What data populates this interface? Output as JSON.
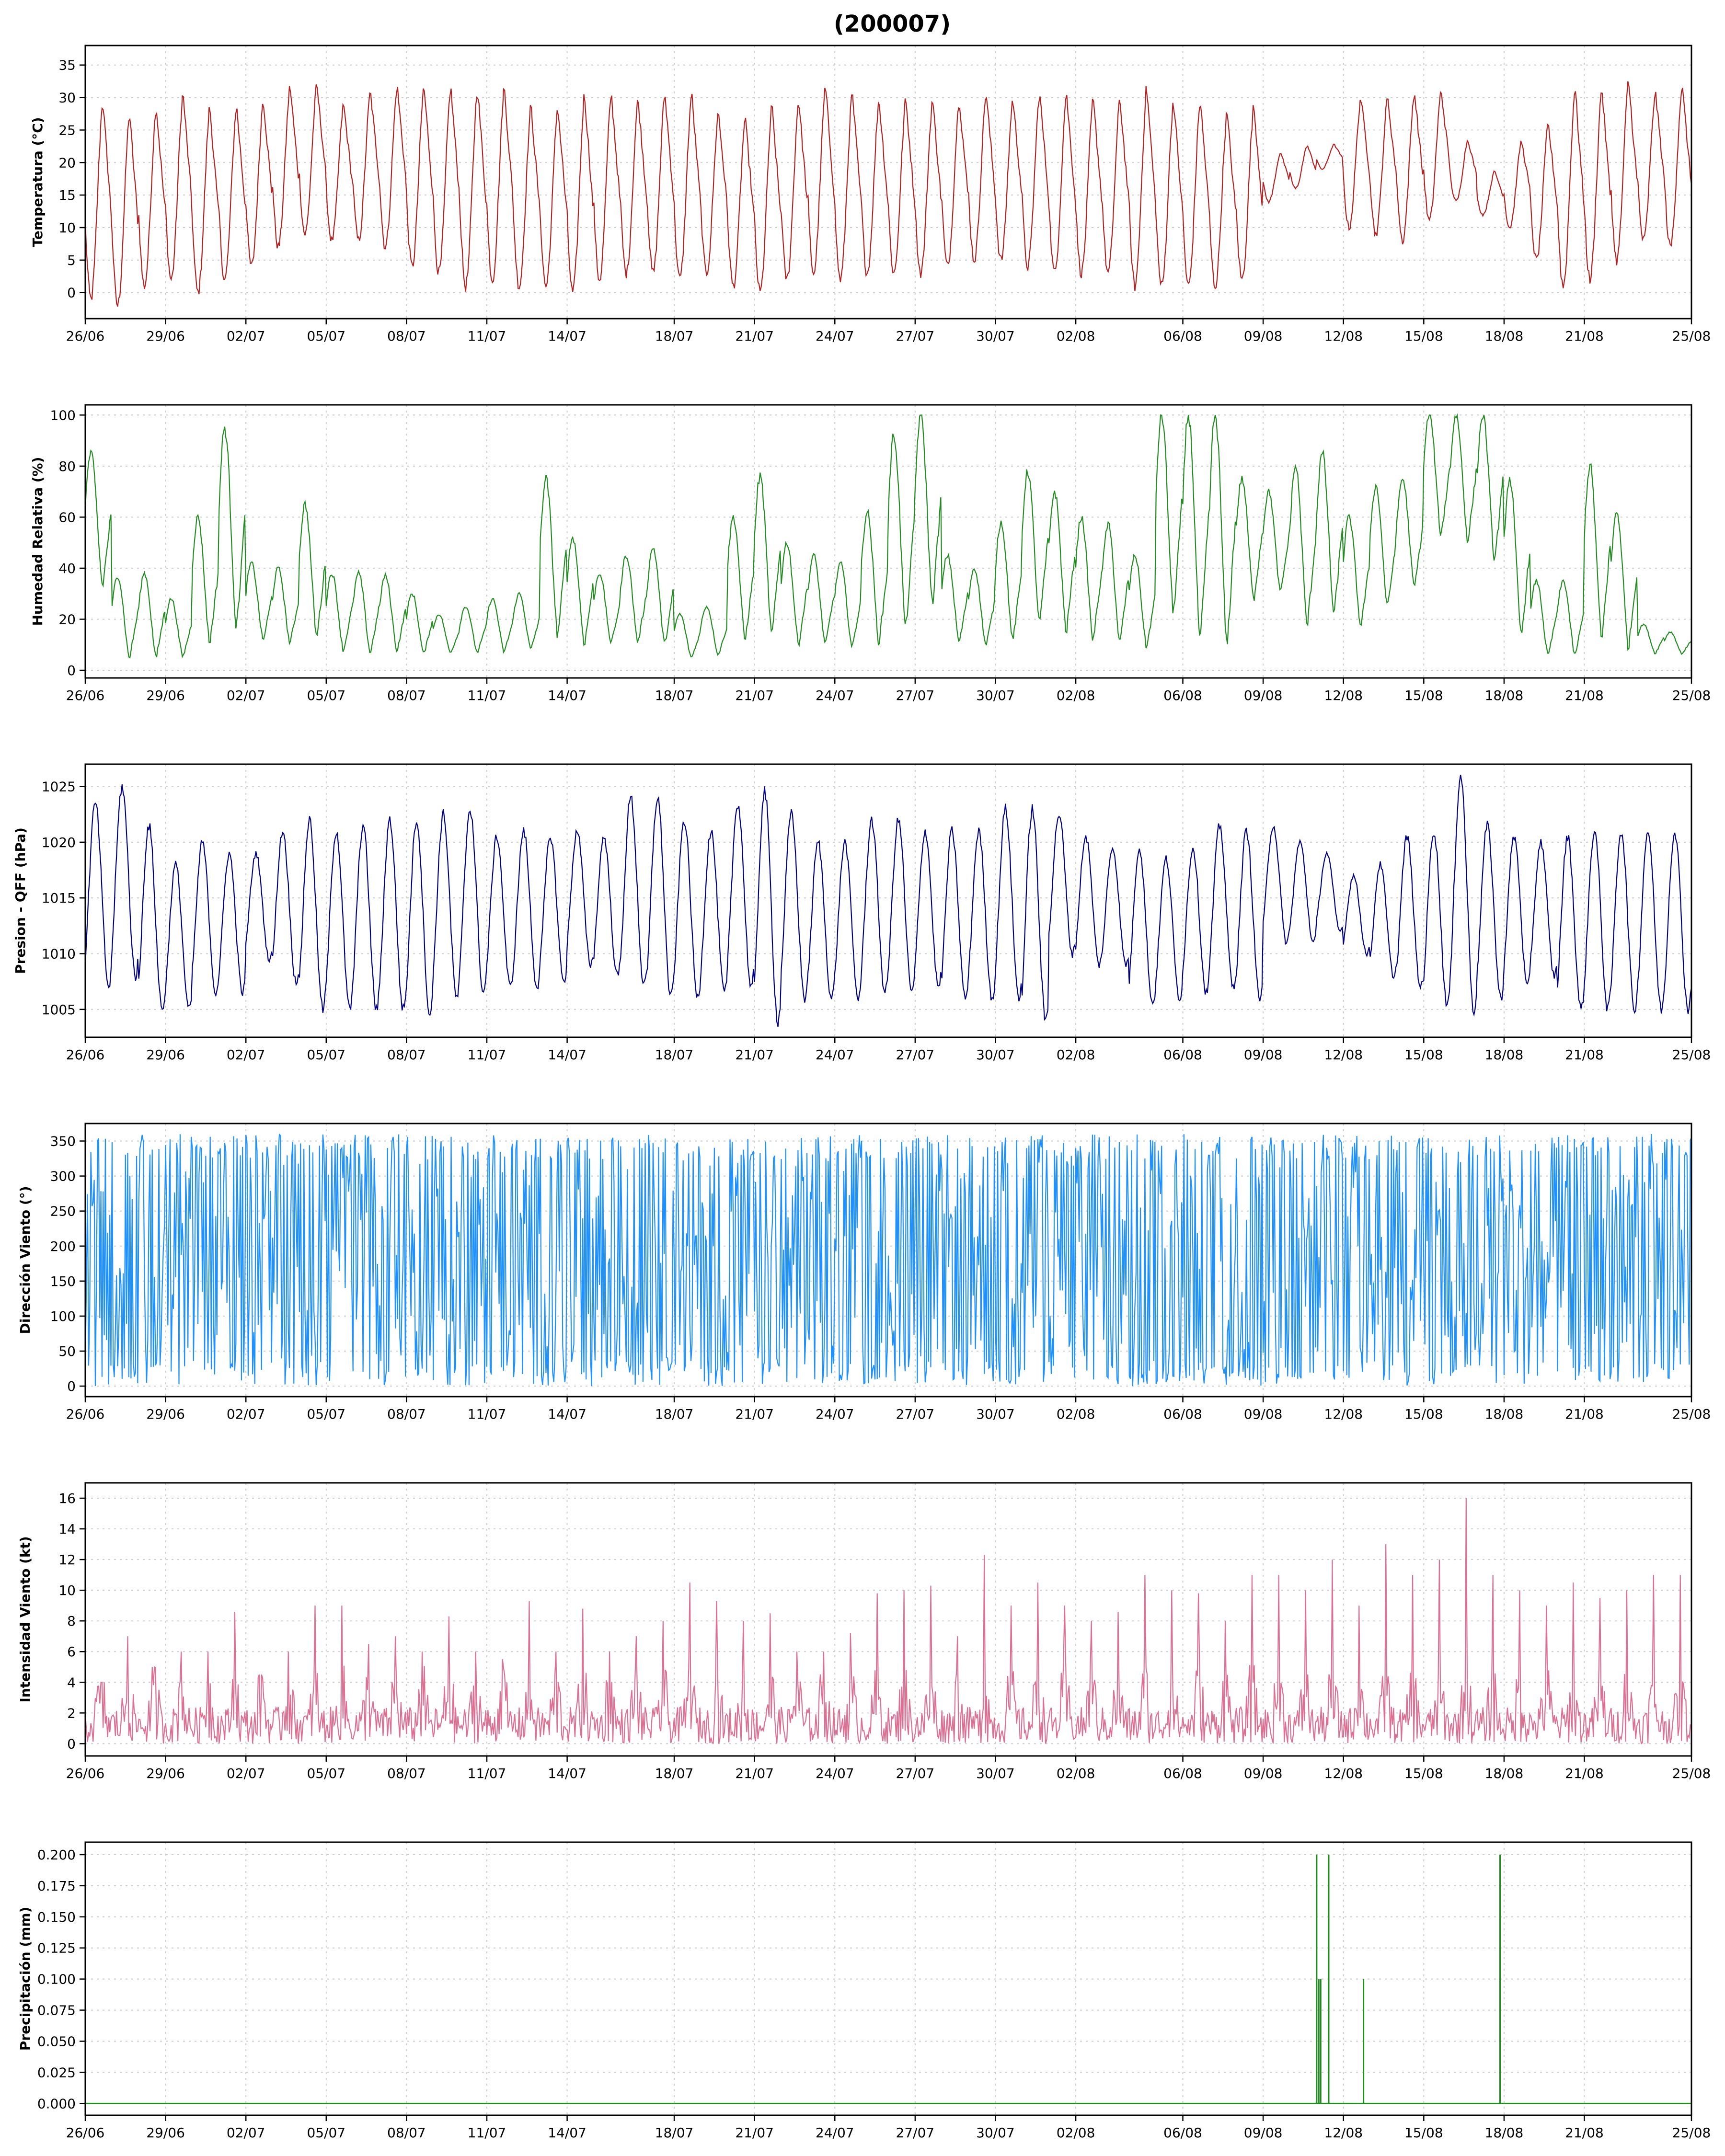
{
  "chart_data": {
    "title": "(200007)",
    "x_tick_labels": [
      "26/06",
      "29/06",
      "02/07",
      "05/07",
      "08/07",
      "11/07",
      "14/07",
      "18/07",
      "21/07",
      "24/07",
      "27/07",
      "30/07",
      "02/08",
      "06/08",
      "09/08",
      "12/08",
      "15/08",
      "18/08",
      "21/08",
      "25/08"
    ],
    "panels": [
      {
        "type": "line",
        "ylabel": "Temperatura (°C)",
        "color": "#b22222",
        "ylim": [
          -4,
          38
        ],
        "yticks": [
          0,
          5,
          10,
          15,
          20,
          25,
          30,
          35
        ],
        "ytick_labels": [
          "0",
          "5",
          "10",
          "15",
          "20",
          "25",
          "30",
          "35"
        ],
        "series": [
          {
            "daily_max": [
              31,
              29,
              30,
              32,
              30,
              30,
              31,
              33,
              33,
              30,
              32,
              33,
              33,
              33,
              33,
              33,
              30,
              30,
              32,
              32,
              31,
              32,
              32,
              29,
              28,
              30,
              31,
              33,
              32,
              31,
              31,
              31,
              31,
              32,
              31,
              32,
              32,
              31,
              31,
              33,
              31,
              31,
              29,
              30,
              22,
              23,
              23,
              31,
              31,
              32,
              32,
              24,
              19,
              24,
              27,
              33,
              33,
              34,
              32,
              33
            ],
            "daily_min": [
              -1,
              -2,
              1,
              2,
              0,
              2,
              4,
              7,
              9,
              8,
              8,
              7,
              4,
              3,
              1,
              2,
              1,
              1,
              0,
              2,
              3,
              3,
              2,
              3,
              1,
              0,
              2,
              3,
              2,
              3,
              3,
              3,
              4,
              5,
              5,
              4,
              3,
              3,
              3,
              1,
              1,
              1,
              1,
              2,
              14,
              16,
              19,
              10,
              9,
              8,
              11,
              14,
              12,
              10,
              5,
              1,
              2,
              5,
              8,
              7
            ],
            "note": "hourly diurnal curve between daily min (~06h) and max (~15h), 26/06 to 25/08"
          }
        ]
      },
      {
        "type": "line",
        "ylabel": "Humedad Relativa (%)",
        "color": "#228b22",
        "ylim": [
          -3,
          104
        ],
        "yticks": [
          0,
          20,
          40,
          60,
          80,
          100
        ],
        "ytick_labels": [
          "0",
          "20",
          "40",
          "60",
          "80",
          "100"
        ],
        "series": [
          {
            "daily_max": [
              85,
              37,
              38,
              28,
              60,
              95,
              42,
              40,
              65,
              38,
              38,
              37,
              30,
              22,
              25,
              28,
              30,
              75,
              52,
              38,
              45,
              48,
              22,
              25,
              60,
              76,
              50,
              45,
              42,
              62,
              92,
              100,
              45,
              40,
              58,
              78,
              70,
              60,
              57,
              45,
              100,
              100,
              100,
              75,
              70,
              80,
              85,
              60,
              72,
              75,
              100,
              100,
              100,
              75,
              35,
              35,
              80,
              62,
              18,
              15
            ],
            "daily_min": [
              30,
              3,
              3,
              4,
              8,
              12,
              10,
              9,
              10,
              6,
              5,
              6,
              5,
              6,
              6,
              6,
              7,
              10,
              8,
              9,
              9,
              8,
              4,
              5,
              9,
              10,
              8,
              8,
              7,
              8,
              12,
              22,
              9,
              8,
              9,
              15,
              12,
              9,
              8,
              7,
              18,
              6,
              4,
              25,
              28,
              14,
              18,
              15,
              22,
              30,
              50,
              48,
              40,
              10,
              4,
              4,
              8,
              6,
              6,
              6
            ],
            "note": "hourly diurnal curve inverse to temperature, saturation plateaus at 100%"
          }
        ]
      },
      {
        "type": "line",
        "ylabel": "Presion - QFF (hPa)",
        "color": "#000080",
        "ylim": [
          1002.5,
          1027
        ],
        "yticks": [
          1005,
          1010,
          1015,
          1020,
          1025
        ],
        "ytick_labels": [
          "1005",
          "1010",
          "1015",
          "1020",
          "1025"
        ],
        "series": [
          {
            "daily_max": [
              1023.5,
              1025,
              1021.5,
              1018,
              1020,
              1019,
              1019,
              1021,
              1022,
              1021,
              1021.5,
              1022,
              1022,
              1022.5,
              1023,
              1020.5,
              1021,
              1020.5,
              1021,
              1020.5,
              1024,
              1024,
              1022,
              1021,
              1023.5,
              1024.5,
              1022.5,
              1020,
              1020,
              1022,
              1022,
              1021,
              1021,
              1021,
              1023,
              1023,
              1022.5,
              1020.5,
              1019.5,
              1019.5,
              1018.5,
              1019.5,
              1021.5,
              1021,
              1021.5,
              1020,
              1019,
              1017,
              1018,
              1020.5,
              1021,
              1026,
              1021.5,
              1020.5,
              1020,
              1020.5,
              1021
            ],
            "daily_min": [
              1007,
              1008,
              1005,
              1005,
              1006.5,
              1006.5,
              1009.5,
              1007.5,
              1005,
              1005,
              1005,
              1005,
              1004.5,
              1006,
              1006.5,
              1007,
              1007,
              1007.5,
              1009,
              1008,
              1007,
              1006,
              1006,
              1006.5,
              1007,
              1004,
              1006,
              1006,
              1006,
              1006.5,
              1006.5,
              1007,
              1006,
              1006,
              1006,
              1004,
              1010,
              1009,
              1009,
              1005.5,
              1006,
              1006.5,
              1007,
              1006,
              1011,
              1011,
              1012,
              1010,
              1008,
              1007,
              1005.5,
              1005,
              1006
            ],
            "note": "hourly semi-diurnal pressure oscillation"
          }
        ]
      },
      {
        "type": "line",
        "ylabel": "Dirección Viento (°)",
        "color": "#1e90ff",
        "ylim": [
          -15,
          375
        ],
        "yticks": [
          0,
          50,
          100,
          150,
          200,
          250,
          300,
          350
        ],
        "ytick_labels": [
          "0",
          "50",
          "100",
          "150",
          "200",
          "250",
          "300",
          "350"
        ],
        "series": [
          {
            "range": [
              0,
              360
            ],
            "note": "hourly wind direction, rapidly varying 0–360 with wrap-around"
          }
        ]
      },
      {
        "type": "line",
        "ylabel": "Intensidad Viento (kt)",
        "color": "#db7093",
        "ylim": [
          -0.8,
          17
        ],
        "yticks": [
          0,
          2,
          4,
          6,
          8,
          10,
          12,
          14,
          16
        ],
        "ytick_labels": [
          "0",
          "2",
          "4",
          "6",
          "8",
          "10",
          "12",
          "14",
          "16"
        ],
        "series": [
          {
            "daily_max": [
              4,
              7,
              5,
              6,
              6,
              8.6,
              4.5,
              6,
              9,
              9,
              6.5,
              7,
              6,
              8.3,
              6,
              5.5,
              9.3,
              6,
              8.8,
              6,
              7,
              8,
              10.5,
              9.3,
              8,
              8.5,
              6,
              6,
              7.2,
              9.8,
              10,
              10.3,
              7,
              12.3,
              9,
              10.5,
              9,
              8,
              8.6,
              11,
              10,
              9.8,
              8,
              11,
              11,
              10,
              12,
              9,
              13,
              11,
              12,
              16,
              11,
              10,
              9,
              10.5,
              9.5,
              10,
              11
            ],
            "note": "hourly wind speed 0 to daily maximum"
          }
        ]
      },
      {
        "type": "bar",
        "ylabel": "Precipitación (mm)",
        "color": "#228b22",
        "ylim": [
          -0.0095,
          0.21
        ],
        "yticks": [
          0,
          0.025,
          0.05,
          0.075,
          0.1,
          0.125,
          0.15,
          0.175,
          0.2
        ],
        "ytick_labels": [
          "0.000",
          "0.025",
          "0.050",
          "0.075",
          "0.100",
          "0.125",
          "0.150",
          "0.175",
          "0.200"
        ],
        "series": [
          {
            "events": [
              {
                "x": "11/08",
                "value": 0.2
              },
              {
                "x": "11/08",
                "value": 0.1
              },
              {
                "x": "11/08",
                "value": 0.1
              },
              {
                "x": "11/08",
                "value": 0.2
              },
              {
                "x": "12/08",
                "value": 0.1
              },
              {
                "x": "17/08",
                "value": 0.2
              }
            ],
            "baseline": 0
          }
        ]
      }
    ]
  }
}
